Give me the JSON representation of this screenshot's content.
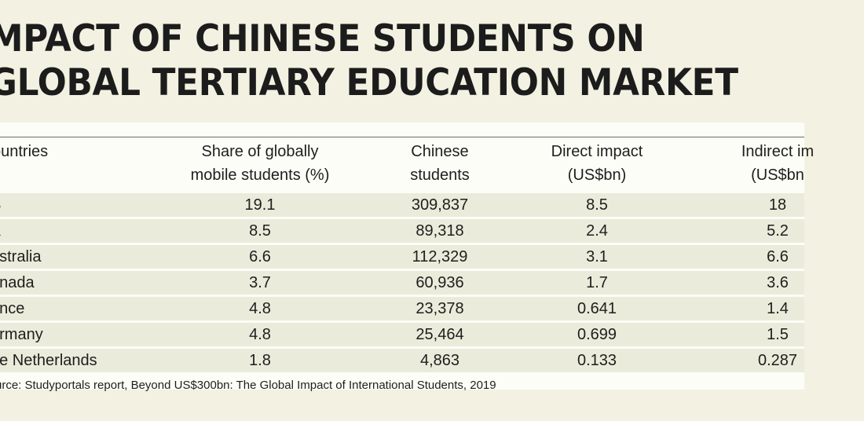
{
  "title": {
    "line1": "MPACT OF CHINESE STUDENTS ON",
    "line2": "GLOBAL TERTIARY EDUCATION MARKET"
  },
  "table": {
    "headers": [
      {
        "line1": "ountries",
        "line2": ""
      },
      {
        "line1": "Share of globally",
        "line2": "mobile students (%)"
      },
      {
        "line1": "Chinese",
        "line2": "students"
      },
      {
        "line1": "Direct impact",
        "line2": "(US$bn)"
      },
      {
        "line1": "Indirect im",
        "line2": "(US$bn"
      }
    ],
    "rows": [
      [
        "S",
        "19.1",
        "309,837",
        "8.5",
        "18"
      ],
      [
        "K",
        "8.5",
        "89,318",
        "2.4",
        "5.2"
      ],
      [
        "ustralia",
        "6.6",
        "112,329",
        "3.1",
        "6.6"
      ],
      [
        "anada",
        "3.7",
        "60,936",
        "1.7",
        "3.6"
      ],
      [
        "ance",
        "4.8",
        "23,378",
        "0.641",
        "1.4"
      ],
      [
        "ermany",
        "4.8",
        "25,464",
        "0.699",
        "1.5"
      ],
      [
        "he Netherlands",
        "1.8",
        "4,863",
        "0.133",
        "0.287"
      ]
    ]
  },
  "source": "urce: Studyportals report, Beyond US$300bn: The Global Impact of International Students, 2019",
  "colors": {
    "page_background": "#f3f2e2",
    "table_background": "#fdfdf7",
    "row_background": "#ebebdb",
    "text": "#1e1e1e"
  }
}
